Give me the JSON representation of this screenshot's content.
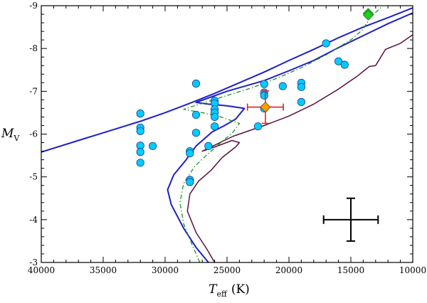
{
  "chart_data": {
    "type": "scatter",
    "title": "",
    "xlabel": {
      "symbol": "T",
      "subscript": "eff",
      "unit": "(K)"
    },
    "ylabel": {
      "symbol": "M",
      "subscript": "V"
    },
    "xlim": [
      40000,
      10000
    ],
    "ylim": [
      -3,
      -9
    ],
    "x_ticks": [
      40000,
      35000,
      30000,
      25000,
      20000,
      15000,
      10000
    ],
    "x_tick_labels": [
      "40000",
      "35000",
      "30000",
      "25000",
      "20000",
      "15000",
      "10000"
    ],
    "y_ticks": [
      -9,
      -8,
      -7,
      -6,
      -5,
      -4,
      -3
    ],
    "y_tick_labels": [
      "-9",
      "-8",
      "-7",
      "-6",
      "-5",
      "-4",
      "-3"
    ],
    "grid": false,
    "legend": "none",
    "colors": {
      "points": "#00ccff",
      "points_edge": "#1a3c8c",
      "track_blue": "#1f1fc8",
      "track_purple": "#5a0f3c",
      "track_green": "#1f8f1f",
      "target": "#f5a000",
      "target_error": "#e0202a",
      "green_marker": "#22cc22",
      "typical_error": "#000000"
    },
    "series": [
      {
        "kind": "scatter",
        "points": [
          [
            32000,
            -6.48
          ],
          [
            32000,
            -6.15
          ],
          [
            32000,
            -6.07
          ],
          [
            32000,
            -5.73
          ],
          [
            32000,
            -5.58
          ],
          [
            32000,
            -5.33
          ],
          [
            31000,
            -5.72
          ],
          [
            28000,
            -5.6
          ],
          [
            28000,
            -5.55
          ],
          [
            28000,
            -4.93
          ],
          [
            28000,
            -4.88
          ],
          [
            27500,
            -7.18
          ],
          [
            27500,
            -6.45
          ],
          [
            27500,
            -6.03
          ],
          [
            26500,
            -5.72
          ],
          [
            26000,
            -6.78
          ],
          [
            26000,
            -6.72
          ],
          [
            26000,
            -6.58
          ],
          [
            26000,
            -6.5
          ],
          [
            26000,
            -6.4
          ],
          [
            26000,
            -6.18
          ],
          [
            22500,
            -6.18
          ],
          [
            22000,
            -7.17
          ],
          [
            22000,
            -6.97
          ],
          [
            22000,
            -6.9
          ],
          [
            22000,
            -6.6
          ],
          [
            20500,
            -7.12
          ],
          [
            19000,
            -7.2
          ],
          [
            19000,
            -7.1
          ],
          [
            19000,
            -6.75
          ],
          [
            17000,
            -8.12
          ],
          [
            16000,
            -7.7
          ],
          [
            15500,
            -7.62
          ]
        ]
      },
      {
        "kind": "line",
        "style": "solid-blue",
        "points": [
          [
            40000,
            -5.58
          ],
          [
            37000,
            -5.85
          ],
          [
            34000,
            -6.12
          ],
          [
            32000,
            -6.3
          ],
          [
            30000,
            -6.5
          ],
          [
            28000,
            -6.72
          ],
          [
            26000,
            -6.95
          ],
          [
            24000,
            -7.2
          ],
          [
            22000,
            -7.45
          ],
          [
            20000,
            -7.72
          ],
          [
            18000,
            -7.98
          ],
          [
            16000,
            -8.25
          ],
          [
            14000,
            -8.5
          ],
          [
            12000,
            -8.72
          ],
          [
            10000,
            -8.95
          ]
        ]
      },
      {
        "kind": "line",
        "style": "solid-blue",
        "points": [
          [
            26500,
            -3
          ],
          [
            27500,
            -3.35
          ],
          [
            28500,
            -3.8
          ],
          [
            29500,
            -4.35
          ],
          [
            29800,
            -4.7
          ],
          [
            29300,
            -5.05
          ],
          [
            28300,
            -5.4
          ],
          [
            27500,
            -5.72
          ],
          [
            26200,
            -6.05
          ],
          [
            25200,
            -6.2
          ],
          [
            24300,
            -6.35
          ],
          [
            23600,
            -6.6
          ],
          [
            25000,
            -6.66
          ],
          [
            26500,
            -6.7
          ],
          [
            27500,
            -6.74
          ],
          [
            25000,
            -7.0
          ],
          [
            22000,
            -7.25
          ],
          [
            20000,
            -7.48
          ],
          [
            18000,
            -7.72
          ],
          [
            16000,
            -8.02
          ],
          [
            14000,
            -8.3
          ],
          [
            12000,
            -8.58
          ],
          [
            10000,
            -8.83
          ]
        ]
      },
      {
        "kind": "line",
        "style": "solid-purple",
        "points": [
          [
            26000,
            -3
          ],
          [
            26600,
            -3.3
          ],
          [
            27500,
            -3.7
          ],
          [
            28200,
            -4.2
          ],
          [
            28000,
            -4.6
          ],
          [
            27300,
            -4.9
          ],
          [
            26300,
            -5.15
          ],
          [
            25400,
            -5.45
          ],
          [
            24300,
            -5.7
          ],
          [
            24000,
            -5.8
          ],
          [
            24600,
            -5.85
          ],
          [
            25500,
            -5.75
          ],
          [
            27000,
            -5.6
          ],
          [
            24500,
            -5.95
          ],
          [
            22000,
            -6.2
          ],
          [
            20000,
            -6.42
          ],
          [
            18000,
            -6.7
          ],
          [
            16000,
            -7.05
          ],
          [
            14500,
            -7.35
          ],
          [
            13500,
            -7.58
          ],
          [
            13000,
            -7.6
          ],
          [
            12200,
            -7.98
          ],
          [
            11000,
            -8.12
          ],
          [
            10000,
            -8.32
          ]
        ]
      },
      {
        "kind": "line",
        "style": "dashdot-green",
        "points": [
          [
            27200,
            -3
          ],
          [
            27800,
            -3.4
          ],
          [
            28500,
            -3.9
          ],
          [
            28800,
            -4.4
          ],
          [
            28500,
            -4.85
          ],
          [
            27600,
            -5.25
          ],
          [
            26500,
            -5.55
          ],
          [
            25500,
            -5.8
          ],
          [
            24500,
            -6.05
          ],
          [
            24000,
            -6.25
          ],
          [
            25500,
            -6.4
          ],
          [
            27000,
            -6.5
          ],
          [
            28500,
            -6.58
          ],
          [
            27000,
            -6.72
          ],
          [
            25000,
            -6.9
          ],
          [
            23000,
            -7.08
          ],
          [
            21000,
            -7.3
          ],
          [
            19000,
            -7.55
          ],
          [
            17000,
            -7.85
          ],
          [
            15000,
            -8.2
          ],
          [
            14000,
            -8.45
          ],
          [
            13500,
            -8.7
          ],
          [
            12500,
            -8.98
          ]
        ]
      },
      {
        "kind": "target",
        "point": [
          21900,
          -6.63
        ],
        "xerr": 1450,
        "yerr": 0.38
      },
      {
        "kind": "diamond",
        "points": [
          [
            13600,
            -8.82
          ],
          [
            13600,
            -8.78
          ]
        ]
      },
      {
        "kind": "typical-error",
        "point": [
          15000,
          -4
        ],
        "xerr": 2200,
        "yerr": 0.5
      }
    ]
  }
}
